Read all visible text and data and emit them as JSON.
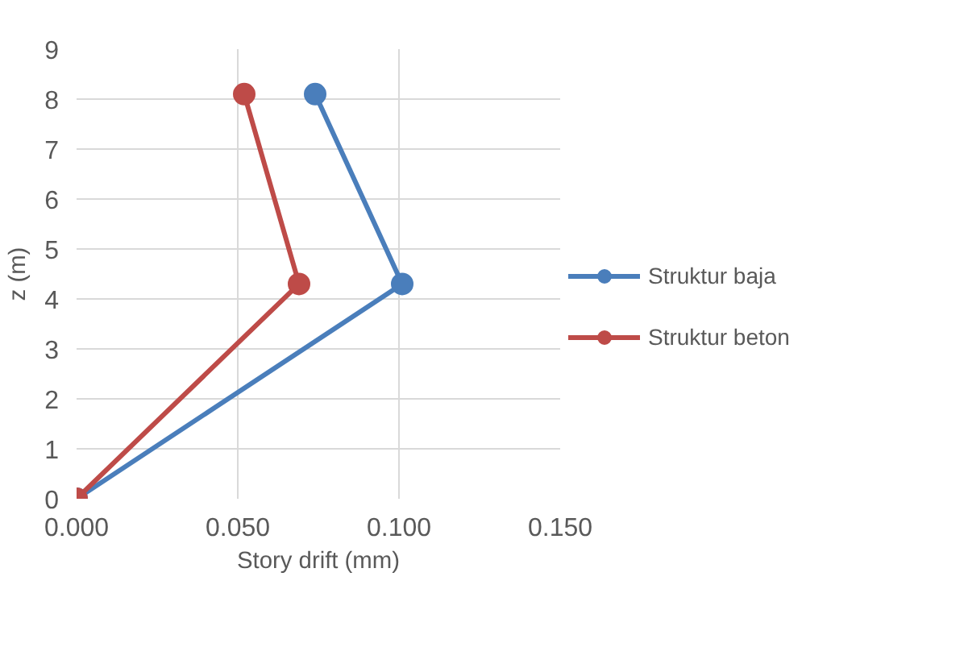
{
  "chart_data": {
    "type": "line",
    "xlabel": "Story drift (mm)",
    "ylabel": "z (m)",
    "xlim": [
      0,
      0.15
    ],
    "xticks": [
      {
        "value": 0,
        "label": "0.000"
      },
      {
        "value": 0.05,
        "label": "0.050"
      },
      {
        "value": 0.1,
        "label": "0.100"
      },
      {
        "value": 0.15,
        "label": "0.150"
      }
    ],
    "ylim": [
      0,
      9
    ],
    "yticks": [
      0,
      1,
      2,
      3,
      4,
      5,
      6,
      7,
      8,
      9
    ],
    "grid": true,
    "legend": "right",
    "marker": "circle",
    "line_style": "solid",
    "series": [
      {
        "name": "Struktur baja",
        "color": "#4a7ebb",
        "x": [
          0,
          0.101,
          0.074
        ],
        "values": [
          0,
          4.3,
          8.1
        ]
      },
      {
        "name": "Struktur beton",
        "color": "#be4b48",
        "x": [
          0,
          0.069,
          0.052
        ],
        "values": [
          0,
          4.3,
          8.1
        ]
      }
    ]
  }
}
